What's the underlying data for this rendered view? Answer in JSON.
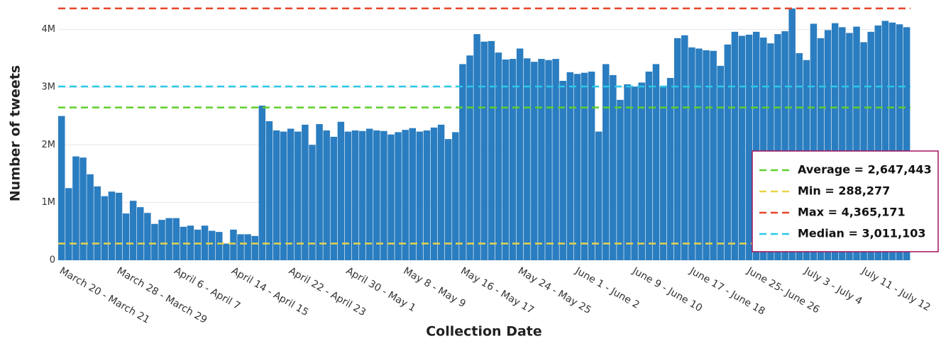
{
  "chart_data": {
    "type": "bar",
    "x_label": "Collection Date",
    "y_label": "Number of tweets",
    "categories": [
      "March 20 - March 21",
      null,
      null,
      null,
      null,
      null,
      null,
      null,
      "March 28 - March 29",
      null,
      null,
      null,
      null,
      null,
      null,
      null,
      "April 6 - April 7",
      null,
      null,
      null,
      null,
      null,
      null,
      null,
      "April 14 - April 15",
      null,
      null,
      null,
      null,
      null,
      null,
      null,
      "April 22 - April 23",
      null,
      null,
      null,
      null,
      null,
      null,
      null,
      "April 30 - May 1",
      null,
      null,
      null,
      null,
      null,
      null,
      null,
      "May 8 - May 9",
      null,
      null,
      null,
      null,
      null,
      null,
      null,
      "May 16 - May 17",
      null,
      null,
      null,
      null,
      null,
      null,
      null,
      "May 24 - May 25",
      null,
      null,
      null,
      null,
      null,
      null,
      null,
      "June 1 - June 2",
      null,
      null,
      null,
      null,
      null,
      null,
      null,
      "June 9 - June 10",
      null,
      null,
      null,
      null,
      null,
      null,
      null,
      "June 17 - June 18",
      null,
      null,
      null,
      null,
      null,
      null,
      null,
      "June 25- June 26",
      null,
      null,
      null,
      null,
      null,
      null,
      null,
      "July 3 - July 4",
      null,
      null,
      null,
      null,
      null,
      null,
      null,
      "July 11 - July 12",
      null,
      null,
      null,
      null,
      null,
      null
    ],
    "values": [
      2500000,
      1250000,
      1800000,
      1780000,
      1490000,
      1280000,
      1110000,
      1190000,
      1170000,
      810000,
      1030000,
      920000,
      820000,
      630000,
      700000,
      730000,
      730000,
      580000,
      600000,
      530000,
      600000,
      510000,
      490000,
      288277,
      530000,
      450000,
      450000,
      420000,
      2680000,
      2410000,
      2250000,
      2230000,
      2280000,
      2230000,
      2350000,
      2000000,
      2360000,
      2250000,
      2140000,
      2400000,
      2230000,
      2250000,
      2240000,
      2280000,
      2250000,
      2240000,
      2180000,
      2220000,
      2260000,
      2290000,
      2230000,
      2250000,
      2300000,
      2350000,
      2100000,
      2220000,
      3400000,
      3550000,
      3920000,
      3790000,
      3800000,
      3600000,
      3480000,
      3490000,
      3670000,
      3500000,
      3440000,
      3490000,
      3470000,
      3490000,
      3110000,
      3260000,
      3230000,
      3250000,
      3270000,
      2230000,
      3400000,
      3210000,
      2780000,
      3050000,
      3010000,
      3080000,
      3270000,
      3400000,
      3010000,
      3160000,
      3850000,
      3900000,
      3690000,
      3670000,
      3640000,
      3630000,
      3370000,
      3740000,
      3960000,
      3890000,
      3910000,
      3960000,
      3860000,
      3760000,
      3920000,
      3970000,
      4365171,
      3590000,
      3470000,
      4100000,
      3850000,
      3990000,
      4110000,
      4040000,
      3940000,
      4050000,
      3780000,
      3960000,
      4070000,
      4150000,
      4120000,
      4090000,
      4040000
    ],
    "color": "#2a7dc0",
    "ylim": [
      0,
      4450000
    ],
    "yticks": [
      0,
      {
        "value": 1000000,
        "label": "1M"
      },
      {
        "value": 2000000,
        "label": "2M"
      },
      {
        "value": 3000000,
        "label": "3M"
      },
      {
        "value": 4000000,
        "label": "4M"
      }
    ],
    "grid": true,
    "reference_lines": [
      {
        "label": "Average = 2,647,443",
        "value": 2647443,
        "color": "#5fcf2a"
      },
      {
        "label": "Min = 288,277",
        "value": 288277,
        "color": "#e8d44a"
      },
      {
        "label": "Max = 4,365,171",
        "value": 4365171,
        "color": "#e8452a"
      },
      {
        "label": "Median = 3,011,103",
        "value": 3011103,
        "color": "#2ac8e8"
      }
    ],
    "legend_position": "lower right"
  }
}
